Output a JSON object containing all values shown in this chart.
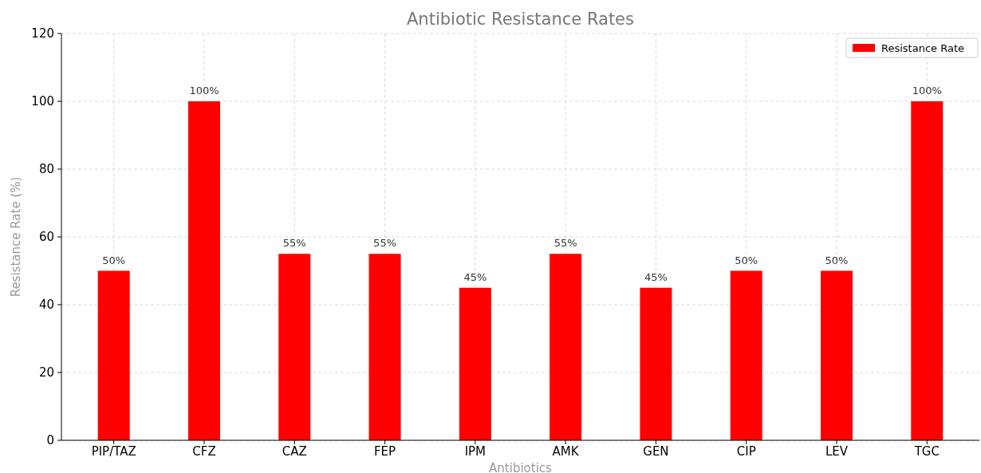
{
  "chart_data": {
    "type": "bar",
    "title": "Antibiotic Resistance Rates",
    "xlabel": "Antibiotics",
    "ylabel": "Resistance Rate (%)",
    "categories": [
      "PIP/TAZ",
      "CFZ",
      "CAZ",
      "FEP",
      "IPM",
      "AMK",
      "GEN",
      "CIP",
      "LEV",
      "TGC"
    ],
    "series": [
      {
        "name": "Resistance Rate",
        "color": "#ff0000",
        "values": [
          50,
          100,
          55,
          55,
          45,
          55,
          45,
          50,
          50,
          100
        ],
        "value_labels": [
          "50%",
          "100%",
          "55%",
          "55%",
          "45%",
          "55%",
          "45%",
          "50%",
          "50%",
          "100%"
        ]
      }
    ],
    "ylim": [
      0,
      120
    ],
    "yticks": [
      0,
      20,
      40,
      60,
      80,
      100,
      120
    ],
    "grid": true,
    "legend": "top right"
  }
}
